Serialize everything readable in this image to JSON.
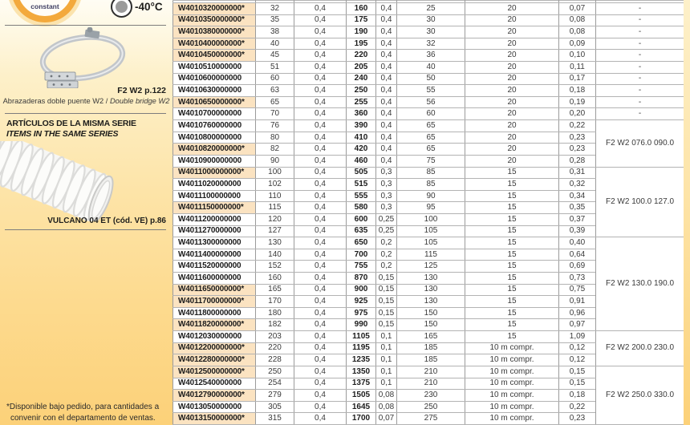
{
  "left_panel": {
    "badge_label": "constant",
    "temperature": "-40°C",
    "clamp_ref": "F2 W2  p.122",
    "clamp_caption_es": "Abrazaderas doble puente W2 / ",
    "clamp_caption_en": "Double bridge W2",
    "series_title_es": "ARTÍCULOS DE LA MISMA SERIE",
    "series_title_en": "ITEMS IN THE SAME SERIES",
    "hose_ref": "VULCANO 04 ET (cód. VE) p.86",
    "footnote_line1": "*Disponible bajo pedido, para cantidades a",
    "footnote_line2": "convenir con el departamento de ventas."
  },
  "table": {
    "highlight_color": "#fbe3c1",
    "rows": [
      {
        "part": "W4010320000000*",
        "hl": true,
        "c": [
          "32",
          "0,4",
          "160",
          "0,4",
          "25",
          "20",
          "0,07"
        ]
      },
      {
        "part": "W4010350000000*",
        "hl": true,
        "c": [
          "35",
          "0,4",
          "175",
          "0,4",
          "30",
          "20",
          "0,08"
        ]
      },
      {
        "part": "W4010380000000*",
        "hl": true,
        "c": [
          "38",
          "0,4",
          "190",
          "0,4",
          "30",
          "20",
          "0,08"
        ]
      },
      {
        "part": "W4010400000000*",
        "hl": true,
        "c": [
          "40",
          "0,4",
          "195",
          "0,4",
          "32",
          "20",
          "0,09"
        ]
      },
      {
        "part": "W4010450000000*",
        "hl": true,
        "c": [
          "45",
          "0,4",
          "220",
          "0,4",
          "36",
          "20",
          "0,10"
        ]
      },
      {
        "part": "W4010510000000",
        "hl": false,
        "c": [
          "51",
          "0,4",
          "205",
          "0,4",
          "40",
          "20",
          "0,11"
        ]
      },
      {
        "part": "W4010600000000",
        "hl": false,
        "c": [
          "60",
          "0,4",
          "240",
          "0,4",
          "50",
          "20",
          "0,17"
        ]
      },
      {
        "part": "W4010630000000",
        "hl": false,
        "c": [
          "63",
          "0,4",
          "250",
          "0,4",
          "55",
          "20",
          "0,18"
        ]
      },
      {
        "part": "W4010650000000*",
        "hl": true,
        "c": [
          "65",
          "0,4",
          "255",
          "0,4",
          "56",
          "20",
          "0,19"
        ]
      },
      {
        "part": "W4010700000000",
        "hl": false,
        "c": [
          "70",
          "0,4",
          "360",
          "0,4",
          "60",
          "20",
          "0,20"
        ]
      },
      {
        "part": "W4010760000000",
        "hl": false,
        "c": [
          "76",
          "0,4",
          "390",
          "0,4",
          "65",
          "20",
          "0,22"
        ]
      },
      {
        "part": "W4010800000000",
        "hl": false,
        "c": [
          "80",
          "0,4",
          "410",
          "0,4",
          "65",
          "20",
          "0,23"
        ]
      },
      {
        "part": "W4010820000000*",
        "hl": true,
        "c": [
          "82",
          "0,4",
          "420",
          "0,4",
          "65",
          "20",
          "0,23"
        ]
      },
      {
        "part": "W4010900000000",
        "hl": false,
        "c": [
          "90",
          "0,4",
          "460",
          "0,4",
          "75",
          "20",
          "0,28"
        ]
      },
      {
        "part": "W4011000000000*",
        "hl": true,
        "c": [
          "100",
          "0,4",
          "505",
          "0,3",
          "85",
          "15",
          "0,31"
        ]
      },
      {
        "part": "W4011020000000",
        "hl": false,
        "c": [
          "102",
          "0,4",
          "515",
          "0,3",
          "85",
          "15",
          "0,32"
        ]
      },
      {
        "part": "W4011100000000",
        "hl": false,
        "c": [
          "110",
          "0,4",
          "555",
          "0,3",
          "90",
          "15",
          "0,34"
        ]
      },
      {
        "part": "W4011150000000*",
        "hl": true,
        "c": [
          "115",
          "0,4",
          "580",
          "0,3",
          "95",
          "15",
          "0,35"
        ]
      },
      {
        "part": "W4011200000000",
        "hl": false,
        "c": [
          "120",
          "0,4",
          "600",
          "0,25",
          "100",
          "15",
          "0,37"
        ]
      },
      {
        "part": "W4011270000000",
        "hl": false,
        "c": [
          "127",
          "0,4",
          "635",
          "0,25",
          "105",
          "15",
          "0,39"
        ]
      },
      {
        "part": "W4011300000000",
        "hl": false,
        "c": [
          "130",
          "0,4",
          "650",
          "0,2",
          "105",
          "15",
          "0,40"
        ]
      },
      {
        "part": "W4011400000000",
        "hl": false,
        "c": [
          "140",
          "0,4",
          "700",
          "0,2",
          "115",
          "15",
          "0,64"
        ]
      },
      {
        "part": "W4011520000000",
        "hl": false,
        "c": [
          "152",
          "0,4",
          "755",
          "0,2",
          "125",
          "15",
          "0,69"
        ]
      },
      {
        "part": "W4011600000000",
        "hl": false,
        "c": [
          "160",
          "0,4",
          "870",
          "0,15",
          "130",
          "15",
          "0,73"
        ]
      },
      {
        "part": "W4011650000000*",
        "hl": true,
        "c": [
          "165",
          "0,4",
          "900",
          "0,15",
          "130",
          "15",
          "0,75"
        ]
      },
      {
        "part": "W4011700000000*",
        "hl": true,
        "c": [
          "170",
          "0,4",
          "925",
          "0,15",
          "130",
          "15",
          "0,91"
        ]
      },
      {
        "part": "W4011800000000",
        "hl": false,
        "c": [
          "180",
          "0,4",
          "975",
          "0,15",
          "150",
          "15",
          "0,96"
        ]
      },
      {
        "part": "W4011820000000*",
        "hl": true,
        "c": [
          "182",
          "0,4",
          "990",
          "0,15",
          "150",
          "15",
          "0,97"
        ]
      },
      {
        "part": "W4012030000000",
        "hl": false,
        "c": [
          "203",
          "0,4",
          "1105",
          "0,1",
          "165",
          "15",
          "1,09"
        ]
      },
      {
        "part": "W4012200000000*",
        "hl": true,
        "c": [
          "220",
          "0,4",
          "1195",
          "0,1",
          "185",
          "10 m compr.",
          "0,12"
        ]
      },
      {
        "part": "W4012280000000*",
        "hl": true,
        "c": [
          "228",
          "0,4",
          "1235",
          "0,1",
          "185",
          "10 m compr.",
          "0,12"
        ]
      },
      {
        "part": "W4012500000000*",
        "hl": true,
        "c": [
          "250",
          "0,4",
          "1350",
          "0,1",
          "210",
          "10 m compr.",
          "0,15"
        ]
      },
      {
        "part": "W4012540000000",
        "hl": false,
        "c": [
          "254",
          "0,4",
          "1375",
          "0,1",
          "210",
          "10 m compr.",
          "0,15"
        ]
      },
      {
        "part": "W4012790000000*",
        "hl": true,
        "c": [
          "279",
          "0,4",
          "1505",
          "0,08",
          "230",
          "10 m compr.",
          "0,18"
        ]
      },
      {
        "part": "W4013050000000",
        "hl": false,
        "c": [
          "305",
          "0,4",
          "1645",
          "0,08",
          "250",
          "10 m compr.",
          "0,22"
        ]
      },
      {
        "part": "W4013150000000*",
        "hl": true,
        "c": [
          "315",
          "0,4",
          "1700",
          "0,07",
          "275",
          "10 m compr.",
          "0,23"
        ]
      }
    ],
    "groups": [
      {
        "start": 0,
        "count": 10,
        "label": "-",
        "each": true
      },
      {
        "start": 10,
        "count": 4,
        "label": "F2 W2 076.0 090.0"
      },
      {
        "start": 14,
        "count": 6,
        "label": "F2 W2 100.0 127.0"
      },
      {
        "start": 20,
        "count": 8,
        "label": "F2 W2 130.0 190.0"
      },
      {
        "start": 28,
        "count": 3,
        "label": "F2 W2 200.0 230.0"
      },
      {
        "start": 31,
        "count": 5,
        "label": "F2 W2 250.0 330.0"
      }
    ]
  }
}
